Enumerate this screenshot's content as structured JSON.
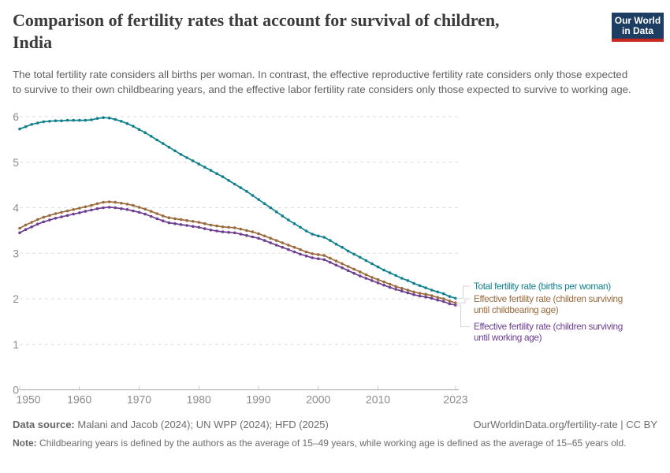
{
  "header": {
    "title_line1": "Comparison of fertility rates that account for survival of children,",
    "title_line2": "India",
    "subtitle": "The total fertility rate considers all births per woman. In contrast, the effective reproductive fertility rate considers only those expected to survive to their own childbearing years, and the effective labor fertility rate considers only those expected to survive to working age.",
    "logo": {
      "line1": "Our World",
      "line2": "in Data",
      "bg_color": "#1d3d63",
      "stripe_color": "#c7271e"
    }
  },
  "chart_data": {
    "type": "line",
    "title": "Comparison of fertility rates that account for survival of children, India",
    "xlabel": "",
    "ylabel": "",
    "xlim": [
      1950,
      2023
    ],
    "ylim": [
      0,
      6
    ],
    "x_ticks": [
      1950,
      1960,
      1970,
      1980,
      1990,
      2000,
      2010,
      2023
    ],
    "y_ticks": [
      0,
      1,
      2,
      3,
      4,
      5,
      6
    ],
    "grid": "horizontal-dashed",
    "legend_position": "right-of-line-ends",
    "x": [
      1950,
      1951,
      1952,
      1953,
      1954,
      1955,
      1956,
      1957,
      1958,
      1959,
      1960,
      1961,
      1962,
      1963,
      1964,
      1965,
      1966,
      1967,
      1968,
      1969,
      1970,
      1971,
      1972,
      1973,
      1974,
      1975,
      1976,
      1977,
      1978,
      1979,
      1980,
      1981,
      1982,
      1983,
      1984,
      1985,
      1986,
      1987,
      1988,
      1989,
      1990,
      1991,
      1992,
      1993,
      1994,
      1995,
      1996,
      1997,
      1998,
      1999,
      2000,
      2001,
      2002,
      2003,
      2004,
      2005,
      2006,
      2007,
      2008,
      2009,
      2010,
      2011,
      2012,
      2013,
      2014,
      2015,
      2016,
      2017,
      2018,
      2019,
      2020,
      2021,
      2022,
      2023
    ],
    "series": [
      {
        "name": "Total fertility rate (births per woman)",
        "color": "#10808d",
        "values": [
          5.73,
          5.78,
          5.83,
          5.86,
          5.89,
          5.9,
          5.91,
          5.91,
          5.92,
          5.92,
          5.92,
          5.92,
          5.93,
          5.96,
          5.98,
          5.97,
          5.94,
          5.9,
          5.85,
          5.79,
          5.72,
          5.65,
          5.57,
          5.49,
          5.41,
          5.33,
          5.25,
          5.17,
          5.1,
          5.03,
          4.96,
          4.89,
          4.82,
          4.75,
          4.68,
          4.6,
          4.52,
          4.44,
          4.36,
          4.27,
          4.18,
          4.09,
          4.0,
          3.91,
          3.82,
          3.73,
          3.65,
          3.57,
          3.49,
          3.42,
          3.38,
          3.35,
          3.28,
          3.2,
          3.13,
          3.05,
          2.98,
          2.91,
          2.84,
          2.77,
          2.7,
          2.63,
          2.57,
          2.51,
          2.45,
          2.4,
          2.34,
          2.29,
          2.24,
          2.19,
          2.15,
          2.11,
          2.05,
          2.01
        ]
      },
      {
        "name": "Effective fertility rate (children surviving until childbearing age)",
        "color": "#9a6b3d",
        "values": [
          3.55,
          3.62,
          3.68,
          3.74,
          3.79,
          3.83,
          3.87,
          3.9,
          3.93,
          3.96,
          3.99,
          4.02,
          4.05,
          4.09,
          4.12,
          4.13,
          4.12,
          4.1,
          4.08,
          4.05,
          4.01,
          3.97,
          3.92,
          3.87,
          3.82,
          3.78,
          3.76,
          3.74,
          3.72,
          3.7,
          3.68,
          3.65,
          3.62,
          3.6,
          3.58,
          3.57,
          3.56,
          3.53,
          3.5,
          3.47,
          3.43,
          3.38,
          3.33,
          3.28,
          3.23,
          3.18,
          3.13,
          3.08,
          3.03,
          2.99,
          2.97,
          2.95,
          2.89,
          2.83,
          2.77,
          2.71,
          2.65,
          2.59,
          2.53,
          2.47,
          2.42,
          2.37,
          2.32,
          2.27,
          2.23,
          2.19,
          2.15,
          2.12,
          2.1,
          2.07,
          2.03,
          2.0,
          1.95,
          1.91
        ]
      },
      {
        "name": "Effective fertility rate (children surviving until working age)",
        "color": "#6d3e91",
        "values": [
          3.45,
          3.52,
          3.58,
          3.64,
          3.69,
          3.73,
          3.77,
          3.8,
          3.83,
          3.86,
          3.89,
          3.92,
          3.95,
          3.98,
          4.0,
          4.01,
          4.0,
          3.98,
          3.96,
          3.93,
          3.9,
          3.86,
          3.81,
          3.76,
          3.71,
          3.67,
          3.65,
          3.63,
          3.61,
          3.59,
          3.57,
          3.54,
          3.51,
          3.49,
          3.47,
          3.46,
          3.45,
          3.42,
          3.39,
          3.36,
          3.33,
          3.28,
          3.23,
          3.18,
          3.13,
          3.08,
          3.03,
          2.98,
          2.94,
          2.9,
          2.88,
          2.86,
          2.8,
          2.74,
          2.68,
          2.62,
          2.56,
          2.5,
          2.45,
          2.4,
          2.35,
          2.3,
          2.25,
          2.21,
          2.17,
          2.13,
          2.09,
          2.06,
          2.04,
          2.01,
          1.97,
          1.94,
          1.89,
          1.86
        ]
      }
    ]
  },
  "legend": {
    "items": [
      {
        "lines": [
          "Total fertility rate (births per woman)"
        ]
      },
      {
        "lines": [
          "Effective fertility rate (children surviving",
          "until childbearing age)"
        ]
      },
      {
        "lines": [
          "Effective fertility rate (children surviving",
          "until working age)"
        ]
      }
    ]
  },
  "footer": {
    "data_source_label": "Data source:",
    "data_source": "Malani and Jacob (2024); UN WPP (2024); HFD (2025)",
    "attribution": "OurWorldinData.org/fertility-rate | CC BY",
    "note_label": "Note:",
    "note": "Childbearing years is defined by the authors as the average of 15–49 years, while working age is defined as the average of 15–65 years old."
  }
}
